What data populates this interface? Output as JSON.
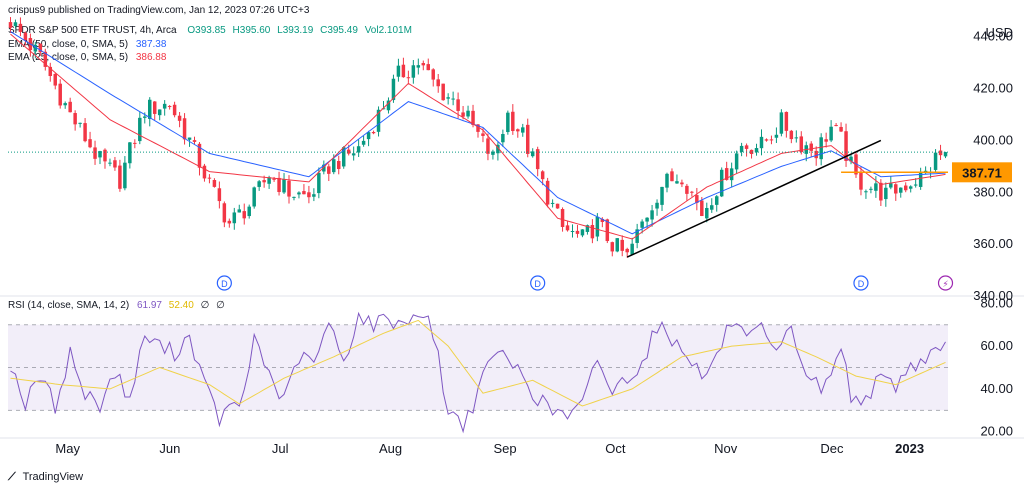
{
  "publisher": "crispus9 published on TradingView.com, Jan 12, 2023 07:26 UTC+3",
  "footer_brand": "TradingView",
  "currency": "USD",
  "colors": {
    "up": "#089981",
    "down": "#f23645",
    "ema50": "#2962ff",
    "ema25": "#f23645",
    "rsi": "#7e57c2",
    "rsi_ma": "#f0d24a",
    "trend": "#000000",
    "level": "#ff9800",
    "last_price": "#089981"
  },
  "legend": {
    "symbol": "SPDR S&P 500 ETF TRUST, 4h, Arca",
    "o_label": "O",
    "o": "393.85",
    "h_label": "H",
    "h": "395.60",
    "l_label": "L",
    "l": "393.19",
    "c_label": "C",
    "c": "395.49",
    "vol_label": "Vol",
    "vol": "2.101M",
    "ema50": "EMA (50, close, 0, SMA, 5)",
    "ema50_val": "387.38",
    "ema25": "EMA (25, close, 0, SMA, 5)",
    "ema25_val": "386.88",
    "rsi": "RSI (14, close, SMA, 14, 2)",
    "rsi_val": "61.97",
    "rsi_ma_val": "52.40",
    "rsi_null1": "∅",
    "rsi_null2": "∅"
  },
  "chart_data": [
    {
      "type": "candlestick",
      "title": "SPDR S&P 500 ETF TRUST",
      "x_labels": [
        "May",
        "Jun",
        "Jul",
        "Aug",
        "Sep",
        "Oct",
        "Nov",
        "Dec",
        "2023"
      ],
      "y_ticks": [
        340,
        360,
        380,
        400,
        420,
        440
      ],
      "ylim": [
        340,
        448
      ],
      "ohlc_anchors": [
        [
          0,
          446
        ],
        [
          6,
          432
        ],
        [
          12,
          410
        ],
        [
          18,
          392
        ],
        [
          22,
          385
        ],
        [
          27,
          412
        ],
        [
          32,
          414
        ],
        [
          36,
          400
        ],
        [
          40,
          383
        ],
        [
          44,
          368
        ],
        [
          48,
          375
        ],
        [
          52,
          387
        ],
        [
          56,
          380
        ],
        [
          60,
          378
        ],
        [
          64,
          390
        ],
        [
          70,
          397
        ],
        [
          74,
          410
        ],
        [
          78,
          425
        ],
        [
          82,
          430
        ],
        [
          86,
          420
        ],
        [
          90,
          414
        ],
        [
          94,
          402
        ],
        [
          97,
          393
        ],
        [
          100,
          410
        ],
        [
          103,
          402
        ],
        [
          107,
          383
        ],
        [
          111,
          366
        ],
        [
          115,
          362
        ],
        [
          118,
          368
        ],
        [
          121,
          360
        ],
        [
          124,
          355
        ],
        [
          127,
          368
        ],
        [
          131,
          383
        ],
        [
          135,
          387
        ],
        [
          139,
          372
        ],
        [
          143,
          385
        ],
        [
          147,
          398
        ],
        [
          151,
          398
        ],
        [
          155,
          407
        ],
        [
          159,
          399
        ],
        [
          162,
          396
        ],
        [
          165,
          405
        ],
        [
          167,
          400
        ],
        [
          170,
          385
        ],
        [
          173,
          382
        ],
        [
          176,
          379
        ],
        [
          180,
          383
        ],
        [
          184,
          387
        ],
        [
          186,
          393
        ],
        [
          188,
          395.5
        ]
      ],
      "ema50": [
        [
          0,
          442
        ],
        [
          20,
          418
        ],
        [
          40,
          395
        ],
        [
          60,
          386
        ],
        [
          80,
          415
        ],
        [
          95,
          405
        ],
        [
          110,
          378
        ],
        [
          125,
          364
        ],
        [
          140,
          378
        ],
        [
          155,
          390
        ],
        [
          165,
          396
        ],
        [
          175,
          386
        ],
        [
          188,
          387.4
        ]
      ],
      "ema25": [
        [
          0,
          441
        ],
        [
          20,
          408
        ],
        [
          40,
          388
        ],
        [
          60,
          384
        ],
        [
          80,
          422
        ],
        [
          95,
          404
        ],
        [
          110,
          370
        ],
        [
          125,
          362
        ],
        [
          140,
          382
        ],
        [
          155,
          395
        ],
        [
          165,
          398
        ],
        [
          175,
          383
        ],
        [
          188,
          386.9
        ]
      ],
      "markers": [
        {
          "label": "D",
          "bar": 43
        },
        {
          "label": "D",
          "bar": 106
        },
        {
          "label": "D",
          "bar": 171
        },
        {
          "label": "⚡",
          "bar": 188
        }
      ],
      "trendline": {
        "from": [
          124,
          355
        ],
        "to": [
          175,
          400
        ]
      },
      "level": {
        "value": 387.71,
        "label": "387.71",
        "from_bar": 167
      }
    },
    {
      "type": "line",
      "title": "RSI",
      "y_ticks": [
        20,
        40,
        60,
        80
      ],
      "ylim": [
        18,
        82
      ],
      "band": [
        30,
        70
      ],
      "midline": 50,
      "rsi_anchors": [
        [
          0,
          52
        ],
        [
          3,
          33
        ],
        [
          6,
          46
        ],
        [
          9,
          32
        ],
        [
          12,
          57
        ],
        [
          15,
          37
        ],
        [
          18,
          33
        ],
        [
          21,
          48
        ],
        [
          24,
          35
        ],
        [
          27,
          65
        ],
        [
          30,
          60
        ],
        [
          33,
          57
        ],
        [
          36,
          65
        ],
        [
          39,
          42
        ],
        [
          42,
          26
        ],
        [
          44,
          30
        ],
        [
          47,
          36
        ],
        [
          49,
          65
        ],
        [
          52,
          47
        ],
        [
          55,
          34
        ],
        [
          58,
          55
        ],
        [
          61,
          52
        ],
        [
          64,
          70
        ],
        [
          67,
          53
        ],
        [
          70,
          74
        ],
        [
          73,
          70
        ],
        [
          76,
          73
        ],
        [
          79,
          70
        ],
        [
          82,
          77
        ],
        [
          85,
          67
        ],
        [
          88,
          29
        ],
        [
          91,
          24
        ],
        [
          94,
          37
        ],
        [
          97,
          58
        ],
        [
          100,
          53
        ],
        [
          103,
          47
        ],
        [
          106,
          35
        ],
        [
          109,
          30
        ],
        [
          112,
          27
        ],
        [
          115,
          32
        ],
        [
          118,
          55
        ],
        [
          121,
          38
        ],
        [
          124,
          46
        ],
        [
          127,
          52
        ],
        [
          130,
          70
        ],
        [
          133,
          63
        ],
        [
          136,
          58
        ],
        [
          139,
          45
        ],
        [
          142,
          55
        ],
        [
          145,
          72
        ],
        [
          148,
          62
        ],
        [
          151,
          67
        ],
        [
          154,
          55
        ],
        [
          157,
          68
        ],
        [
          160,
          47
        ],
        [
          163,
          40
        ],
        [
          165,
          45
        ],
        [
          167,
          62
        ],
        [
          169,
          35
        ],
        [
          172,
          37
        ],
        [
          175,
          44
        ],
        [
          178,
          42
        ],
        [
          181,
          50
        ],
        [
          184,
          55
        ],
        [
          187,
          59
        ],
        [
          188,
          61.97
        ]
      ],
      "rsi_ma_anchors": [
        [
          0,
          45
        ],
        [
          10,
          42
        ],
        [
          20,
          40
        ],
        [
          30,
          50
        ],
        [
          40,
          42
        ],
        [
          46,
          33
        ],
        [
          55,
          45
        ],
        [
          65,
          55
        ],
        [
          75,
          66
        ],
        [
          82,
          72
        ],
        [
          88,
          60
        ],
        [
          95,
          38
        ],
        [
          105,
          44
        ],
        [
          115,
          32
        ],
        [
          125,
          40
        ],
        [
          135,
          55
        ],
        [
          145,
          60
        ],
        [
          155,
          62
        ],
        [
          162,
          55
        ],
        [
          170,
          46
        ],
        [
          178,
          42
        ],
        [
          188,
          52.4
        ]
      ]
    }
  ]
}
